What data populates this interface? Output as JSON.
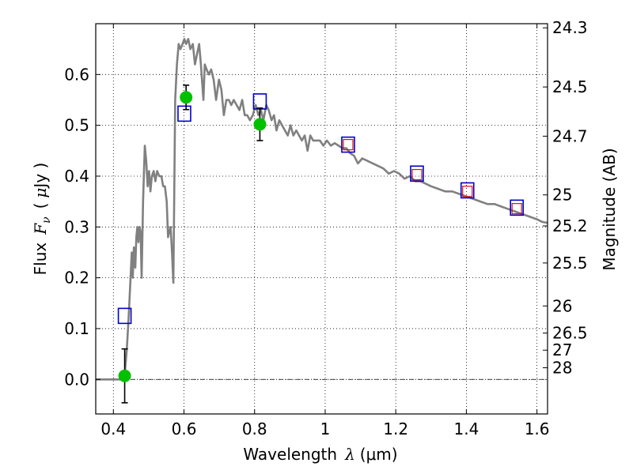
{
  "chart_data": {
    "type": "scatter",
    "xlabel": {
      "prefix": "Wavelength",
      "symbol": "λ",
      "unit": "(μm)"
    },
    "ylabel": {
      "prefix": "Flux",
      "symbol": "F",
      "subscript": "ν",
      "unit_open": "(",
      "unit_mu": "μ",
      "unit_rest": "Jy )"
    },
    "y2label": "Magnitude (AB)",
    "xlim": [
      0.35,
      1.63
    ],
    "ylim": [
      -0.068,
      0.7
    ],
    "grid": true,
    "x_ticks": [
      {
        "v": 0.4,
        "label": "0.4"
      },
      {
        "v": 0.6,
        "label": "0.6"
      },
      {
        "v": 0.8,
        "label": "0.8"
      },
      {
        "v": 1.0,
        "label": "1"
      },
      {
        "v": 1.2,
        "label": "1.2"
      },
      {
        "v": 1.4,
        "label": "1.4"
      },
      {
        "v": 1.6,
        "label": "1.6"
      }
    ],
    "y_ticks": [
      {
        "v": 0.0,
        "label": "0.0"
      },
      {
        "v": 0.1,
        "label": "0.1"
      },
      {
        "v": 0.2,
        "label": "0.2"
      },
      {
        "v": 0.3,
        "label": "0.3"
      },
      {
        "v": 0.4,
        "label": "0.4"
      },
      {
        "v": 0.5,
        "label": "0.5"
      },
      {
        "v": 0.6,
        "label": "0.6"
      }
    ],
    "mag_ticks": [
      {
        "mag": 24.3,
        "label": "24.3"
      },
      {
        "mag": 24.5,
        "label": "24.5"
      },
      {
        "mag": 24.7,
        "label": "24.7"
      },
      {
        "mag": 25,
        "label": "25"
      },
      {
        "mag": 25.2,
        "label": "25.2"
      },
      {
        "mag": 25.5,
        "label": "25.5"
      },
      {
        "mag": 26,
        "label": "26"
      },
      {
        "mag": 26.5,
        "label": "26.5"
      },
      {
        "mag": 27,
        "label": "27"
      },
      {
        "mag": 28,
        "label": "28"
      }
    ],
    "model_spectrum": {
      "color": "#808080",
      "points": [
        [
          0.35,
          0.0
        ],
        [
          0.425,
          0.0
        ],
        [
          0.432,
          0.01
        ],
        [
          0.438,
          0.06
        ],
        [
          0.443,
          0.12
        ],
        [
          0.448,
          0.19
        ],
        [
          0.452,
          0.25
        ],
        [
          0.455,
          0.2
        ],
        [
          0.458,
          0.26
        ],
        [
          0.462,
          0.22
        ],
        [
          0.465,
          0.28
        ],
        [
          0.468,
          0.3
        ],
        [
          0.471,
          0.27
        ],
        [
          0.474,
          0.3
        ],
        [
          0.477,
          0.29
        ],
        [
          0.48,
          0.2
        ],
        [
          0.484,
          0.35
        ],
        [
          0.489,
          0.46
        ],
        [
          0.493,
          0.43
        ],
        [
          0.497,
          0.38
        ],
        [
          0.501,
          0.41
        ],
        [
          0.505,
          0.37
        ],
        [
          0.509,
          0.4
        ],
        [
          0.514,
          0.41
        ],
        [
          0.519,
          0.39
        ],
        [
          0.524,
          0.41
        ],
        [
          0.53,
          0.4
        ],
        [
          0.536,
          0.4
        ],
        [
          0.541,
          0.38
        ],
        [
          0.546,
          0.38
        ],
        [
          0.551,
          0.35
        ],
        [
          0.555,
          0.28
        ],
        [
          0.558,
          0.29
        ],
        [
          0.562,
          0.3
        ],
        [
          0.566,
          0.25
        ],
        [
          0.57,
          0.19
        ],
        [
          0.575,
          0.55
        ],
        [
          0.58,
          0.62
        ],
        [
          0.585,
          0.66
        ],
        [
          0.59,
          0.65
        ],
        [
          0.596,
          0.66
        ],
        [
          0.601,
          0.67
        ],
        [
          0.606,
          0.66
        ],
        [
          0.612,
          0.67
        ],
        [
          0.618,
          0.65
        ],
        [
          0.625,
          0.66
        ],
        [
          0.631,
          0.62
        ],
        [
          0.637,
          0.64
        ],
        [
          0.643,
          0.66
        ],
        [
          0.648,
          0.62
        ],
        [
          0.652,
          0.58
        ],
        [
          0.655,
          0.55
        ],
        [
          0.659,
          0.62
        ],
        [
          0.664,
          0.61
        ],
        [
          0.67,
          0.6
        ],
        [
          0.677,
          0.61
        ],
        [
          0.684,
          0.59
        ],
        [
          0.691,
          0.55
        ],
        [
          0.699,
          0.59
        ],
        [
          0.706,
          0.57
        ],
        [
          0.713,
          0.52
        ],
        [
          0.72,
          0.55
        ],
        [
          0.727,
          0.55
        ],
        [
          0.734,
          0.54
        ],
        [
          0.741,
          0.55
        ],
        [
          0.749,
          0.54
        ],
        [
          0.757,
          0.53
        ],
        [
          0.765,
          0.55
        ],
        [
          0.772,
          0.52
        ],
        [
          0.779,
          0.52
        ],
        [
          0.787,
          0.51
        ],
        [
          0.795,
          0.52
        ],
        [
          0.803,
          0.54
        ],
        [
          0.811,
          0.52
        ],
        [
          0.818,
          0.53
        ],
        [
          0.825,
          0.51
        ],
        [
          0.833,
          0.54
        ],
        [
          0.84,
          0.53
        ],
        [
          0.848,
          0.51
        ],
        [
          0.855,
          0.52
        ],
        [
          0.862,
          0.49
        ],
        [
          0.87,
          0.51
        ],
        [
          0.878,
          0.5
        ],
        [
          0.886,
          0.49
        ],
        [
          0.894,
          0.48
        ],
        [
          0.902,
          0.5
        ],
        [
          0.91,
          0.48
        ],
        [
          0.918,
          0.49
        ],
        [
          0.926,
          0.48
        ],
        [
          0.934,
          0.47
        ],
        [
          0.942,
          0.48
        ],
        [
          0.95,
          0.45
        ],
        [
          0.958,
          0.48
        ],
        [
          0.966,
          0.47
        ],
        [
          0.975,
          0.47
        ],
        [
          0.985,
          0.47
        ],
        [
          0.995,
          0.46
        ],
        [
          1.005,
          0.47
        ],
        [
          1.016,
          0.46
        ],
        [
          1.027,
          0.465
        ],
        [
          1.038,
          0.46
        ],
        [
          1.049,
          0.455
        ],
        [
          1.06,
          0.455
        ],
        [
          1.071,
          0.445
        ],
        [
          1.082,
          0.44
        ],
        [
          1.093,
          0.425
        ],
        [
          1.105,
          0.435
        ],
        [
          1.12,
          0.43
        ],
        [
          1.135,
          0.425
        ],
        [
          1.15,
          0.42
        ],
        [
          1.165,
          0.415
        ],
        [
          1.18,
          0.405
        ],
        [
          1.195,
          0.41
        ],
        [
          1.21,
          0.405
        ],
        [
          1.225,
          0.395
        ],
        [
          1.24,
          0.4
        ],
        [
          1.255,
          0.39
        ],
        [
          1.27,
          0.39
        ],
        [
          1.285,
          0.385
        ],
        [
          1.3,
          0.38
        ],
        [
          1.32,
          0.375
        ],
        [
          1.34,
          0.37
        ],
        [
          1.36,
          0.37
        ],
        [
          1.38,
          0.365
        ],
        [
          1.4,
          0.36
        ],
        [
          1.42,
          0.355
        ],
        [
          1.44,
          0.35
        ],
        [
          1.46,
          0.345
        ],
        [
          1.48,
          0.345
        ],
        [
          1.5,
          0.34
        ],
        [
          1.52,
          0.335
        ],
        [
          1.54,
          0.33
        ],
        [
          1.56,
          0.325
        ],
        [
          1.58,
          0.32
        ],
        [
          1.6,
          0.315
        ],
        [
          1.615,
          0.31
        ],
        [
          1.63,
          0.308
        ]
      ]
    },
    "observed": {
      "color": "#00c000",
      "points": [
        {
          "x": 0.432,
          "y": 0.007,
          "err": 0.053
        },
        {
          "x": 0.606,
          "y": 0.555,
          "err": 0.024
        },
        {
          "x": 0.815,
          "y": 0.502,
          "err": 0.032
        }
      ]
    },
    "model_photometry": {
      "color": "#0000cc",
      "points": [
        {
          "x": 0.432,
          "y": 0.125
        },
        {
          "x": 0.601,
          "y": 0.523
        },
        {
          "x": 0.815,
          "y": 0.547
        },
        {
          "x": 1.065,
          "y": 0.462
        },
        {
          "x": 1.26,
          "y": 0.405
        },
        {
          "x": 1.403,
          "y": 0.372
        },
        {
          "x": 1.543,
          "y": 0.338
        }
      ]
    },
    "model_photometry_inner": {
      "color": "#e01010",
      "points": [
        {
          "x": 1.065,
          "y": 0.462
        },
        {
          "x": 1.26,
          "y": 0.403
        },
        {
          "x": 1.403,
          "y": 0.37
        },
        {
          "x": 1.543,
          "y": 0.336
        }
      ]
    }
  }
}
